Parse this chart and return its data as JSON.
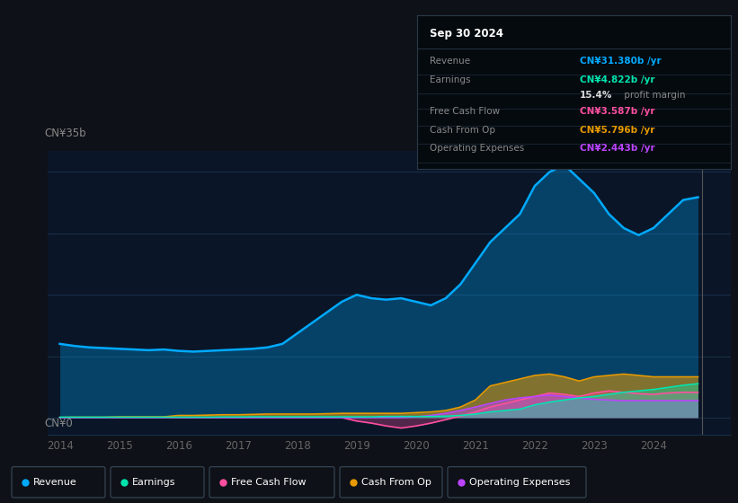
{
  "bg_color": "#0e1117",
  "plot_bg_color": "#0a1628",
  "grid_color": "#1a2e47",
  "years": [
    2014.0,
    2014.25,
    2014.5,
    2014.75,
    2015.0,
    2015.25,
    2015.5,
    2015.75,
    2016.0,
    2016.25,
    2016.5,
    2016.75,
    2017.0,
    2017.25,
    2017.5,
    2017.75,
    2018.0,
    2018.25,
    2018.5,
    2018.75,
    2019.0,
    2019.25,
    2019.5,
    2019.75,
    2020.0,
    2020.25,
    2020.5,
    2020.75,
    2021.0,
    2021.25,
    2021.5,
    2021.75,
    2022.0,
    2022.25,
    2022.5,
    2022.75,
    2023.0,
    2023.25,
    2023.5,
    2023.75,
    2024.0,
    2024.25,
    2024.5,
    2024.75
  ],
  "revenue": [
    10.5,
    10.2,
    10.0,
    9.9,
    9.8,
    9.7,
    9.6,
    9.7,
    9.5,
    9.4,
    9.5,
    9.6,
    9.7,
    9.8,
    10.0,
    10.5,
    12.0,
    13.5,
    15.0,
    16.5,
    17.5,
    17.0,
    16.8,
    17.0,
    16.5,
    16.0,
    17.0,
    19.0,
    22.0,
    25.0,
    27.0,
    29.0,
    33.0,
    35.0,
    36.0,
    34.0,
    32.0,
    29.0,
    27.0,
    26.0,
    27.0,
    29.0,
    31.0,
    31.4
  ],
  "earnings": [
    0.05,
    0.05,
    0.05,
    0.05,
    0.05,
    0.05,
    0.05,
    0.05,
    0.05,
    0.05,
    0.05,
    0.08,
    0.08,
    0.1,
    0.1,
    0.1,
    0.1,
    0.1,
    0.1,
    0.1,
    0.1,
    0.1,
    0.15,
    0.15,
    0.15,
    0.15,
    0.2,
    0.3,
    0.5,
    0.8,
    1.0,
    1.2,
    1.8,
    2.2,
    2.5,
    2.8,
    3.0,
    3.3,
    3.6,
    3.8,
    4.0,
    4.3,
    4.6,
    4.82
  ],
  "free_cash_flow": [
    0.0,
    0.0,
    0.0,
    0.0,
    0.0,
    0.0,
    0.0,
    0.0,
    0.0,
    0.0,
    0.0,
    0.0,
    0.0,
    0.0,
    0.0,
    0.0,
    0.0,
    0.0,
    0.0,
    0.0,
    -0.5,
    -0.8,
    -1.2,
    -1.5,
    -1.2,
    -0.8,
    -0.3,
    0.2,
    0.8,
    1.5,
    2.0,
    2.5,
    3.0,
    3.5,
    3.3,
    3.0,
    3.5,
    3.8,
    3.6,
    3.4,
    3.3,
    3.5,
    3.6,
    3.59
  ],
  "cash_from_op": [
    0.02,
    0.05,
    0.05,
    0.05,
    0.1,
    0.1,
    0.1,
    0.1,
    0.3,
    0.3,
    0.35,
    0.4,
    0.4,
    0.45,
    0.5,
    0.5,
    0.5,
    0.5,
    0.55,
    0.6,
    0.6,
    0.6,
    0.6,
    0.6,
    0.7,
    0.8,
    1.0,
    1.5,
    2.5,
    4.5,
    5.0,
    5.5,
    6.0,
    6.2,
    5.8,
    5.2,
    5.8,
    6.0,
    6.2,
    6.0,
    5.8,
    5.8,
    5.8,
    5.8
  ],
  "operating_expenses": [
    0.0,
    0.0,
    0.0,
    0.0,
    0.0,
    0.0,
    0.0,
    0.0,
    0.0,
    0.0,
    0.0,
    0.0,
    0.0,
    0.0,
    0.0,
    0.0,
    0.0,
    0.0,
    0.0,
    0.0,
    0.0,
    0.0,
    0.0,
    0.0,
    0.1,
    0.3,
    0.6,
    1.0,
    1.5,
    2.0,
    2.5,
    2.8,
    3.0,
    3.2,
    3.0,
    2.8,
    2.6,
    2.5,
    2.4,
    2.4,
    2.4,
    2.4,
    2.4,
    2.44
  ],
  "revenue_color": "#00aaff",
  "earnings_color": "#00e5b0",
  "fcf_color": "#ff4fa0",
  "cashop_color": "#e89a00",
  "opex_color": "#bb44ff",
  "ylabel": "CN¥35b",
  "y0label": "CN¥0",
  "tooltip_title": "Sep 30 2024",
  "tooltip_rows": [
    {
      "label": "Revenue",
      "value": "CN¥31.380b /yr",
      "color": "#00aaff",
      "divider": true
    },
    {
      "label": "Earnings",
      "value": "CN¥4.822b /yr",
      "color": "#00e5b0",
      "divider": false
    },
    {
      "label": "",
      "value": "15.4% profit margin",
      "color": "#dddddd",
      "bold_prefix": "15.4%",
      "divider": true
    },
    {
      "label": "Free Cash Flow",
      "value": "CN¥3.587b /yr",
      "color": "#ff4fa0",
      "divider": true
    },
    {
      "label": "Cash From Op",
      "value": "CN¥5.796b /yr",
      "color": "#e89a00",
      "divider": true
    },
    {
      "label": "Operating Expenses",
      "value": "CN¥2.443b /yr",
      "color": "#bb44ff",
      "divider": true
    }
  ],
  "legend_items": [
    {
      "label": "Revenue",
      "color": "#00aaff"
    },
    {
      "label": "Earnings",
      "color": "#00e5b0"
    },
    {
      "label": "Free Cash Flow",
      "color": "#ff4fa0"
    },
    {
      "label": "Cash From Op",
      "color": "#e89a00"
    },
    {
      "label": "Operating Expenses",
      "color": "#bb44ff"
    }
  ],
  "xlim": [
    2013.8,
    2025.3
  ],
  "ylim": [
    -2.5,
    38
  ],
  "xticks": [
    2014,
    2015,
    2016,
    2017,
    2018,
    2019,
    2020,
    2021,
    2022,
    2023,
    2024
  ],
  "hgrid_vals": [
    0,
    8.75,
    17.5,
    26.25,
    35
  ]
}
